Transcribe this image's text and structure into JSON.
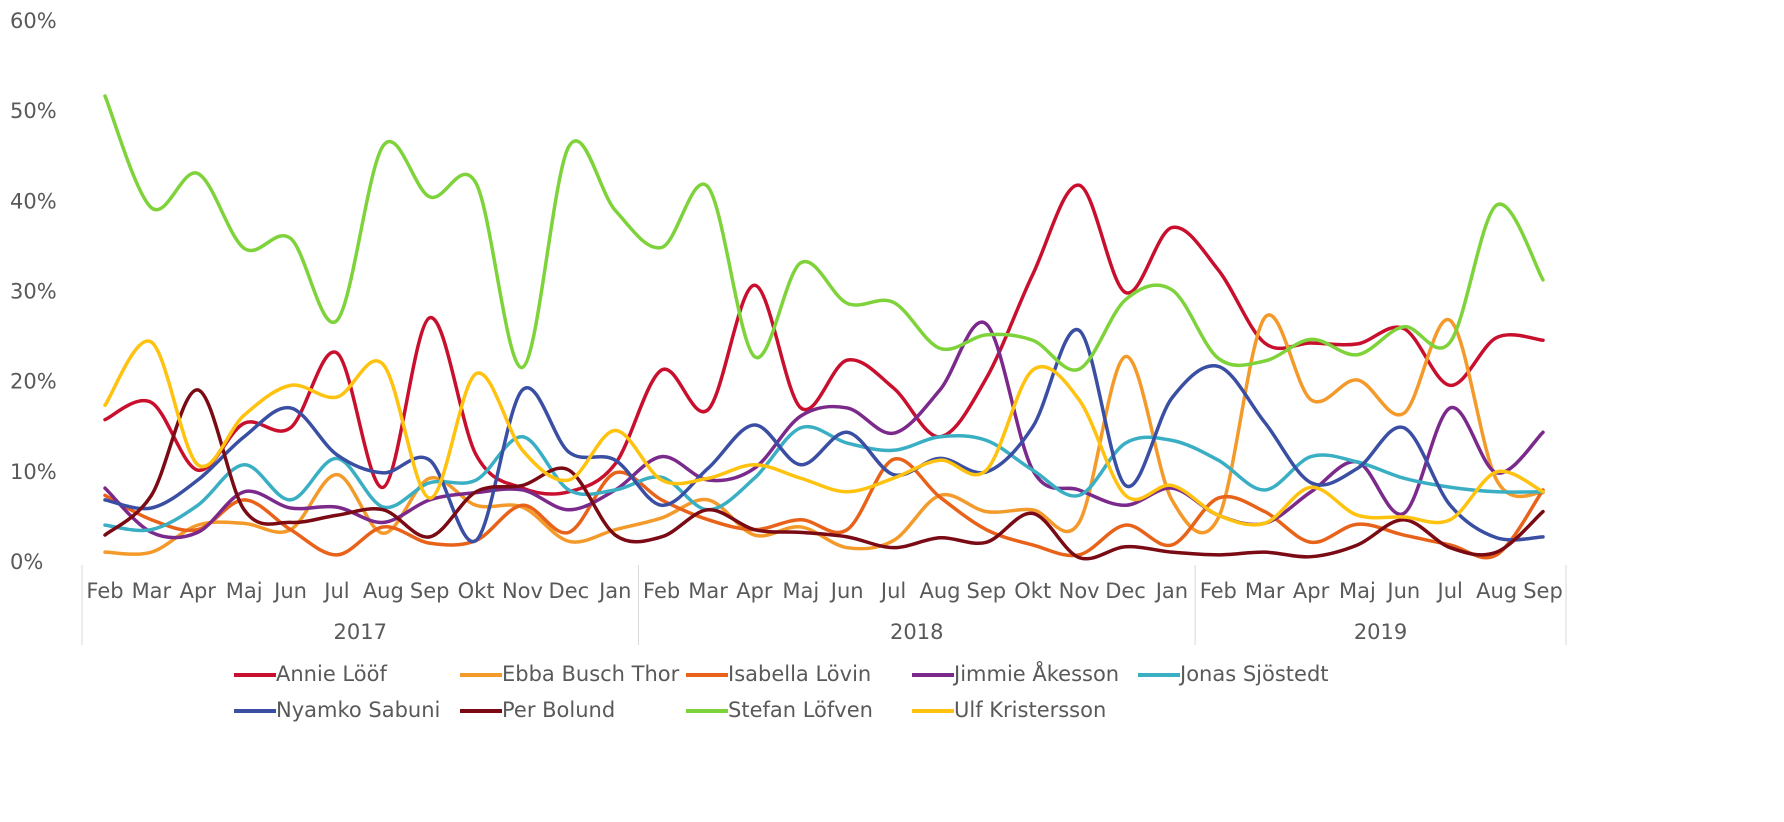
{
  "chart_data": {
    "type": "line",
    "smooth": true,
    "categories": [
      "Feb",
      "Mar",
      "Apr",
      "Maj",
      "Jun",
      "Jul",
      "Aug",
      "Sep",
      "Okt",
      "Nov",
      "Dec",
      "Jan",
      "Feb",
      "Mar",
      "Apr",
      "Maj",
      "Jun",
      "Jul",
      "Aug",
      "Sep",
      "Okt",
      "Nov",
      "Dec",
      "Jan",
      "Feb",
      "Mar",
      "Apr",
      "Maj",
      "Jun",
      "Jul",
      "Aug",
      "Sep"
    ],
    "years": [
      "2017",
      "2018",
      "2019"
    ],
    "ylim": [
      0,
      60
    ],
    "yticks": [
      {
        "value": 0,
        "label": "0%"
      },
      {
        "value": 10,
        "label": "10%"
      },
      {
        "value": 20,
        "label": "20%"
      },
      {
        "value": 30,
        "label": "30%"
      },
      {
        "value": 40,
        "label": "40%"
      },
      {
        "value": 50,
        "label": "50%"
      },
      {
        "value": 60,
        "label": "60%"
      }
    ],
    "legend": "bottom",
    "series": [
      {
        "name": "Annie Lööf",
        "color": "#c8102e",
        "values": [
          15.9,
          17.8,
          10.3,
          15.5,
          15,
          23.3,
          8.4,
          27.2,
          12,
          8.3,
          7.9,
          11,
          21.4,
          17,
          30.8,
          17.2,
          22.5,
          19.4,
          14,
          20.5,
          32,
          41.9,
          30,
          37.2,
          32.5,
          24.4,
          24.4,
          24.3,
          26,
          19.7,
          25,
          24.7
        ]
      },
      {
        "name": "Ebba Busch Thor",
        "color": "#f39a2b",
        "values": [
          1.2,
          1.2,
          4.2,
          4.4,
          3.7,
          9.8,
          3.3,
          9.4,
          6.4,
          6.2,
          2.4,
          3.7,
          5,
          7,
          3.1,
          4,
          1.7,
          2.5,
          7.5,
          5.7,
          5.9,
          4.5,
          22.9,
          7,
          5,
          27.2,
          18.1,
          20.3,
          16.6,
          26.9,
          9.2,
          7.8
        ]
      },
      {
        "name": "Isabella Lövin",
        "color": "#e8621a",
        "values": [
          7.5,
          4.8,
          3.7,
          7,
          3.7,
          0.9,
          4,
          2.2,
          2.5,
          6.4,
          3.4,
          10,
          7,
          4.8,
          3.7,
          4.8,
          3.7,
          11.5,
          7.3,
          3.7,
          2,
          0.9,
          4.2,
          2,
          7.2,
          5.7,
          2.3,
          4.3,
          3.1,
          2,
          0.9,
          8.1
        ]
      },
      {
        "name": "Jimmie Åkesson",
        "color": "#7b2a8b",
        "values": [
          8.3,
          3.4,
          3.4,
          7.9,
          6.1,
          6.2,
          4.5,
          7,
          7.8,
          8.1,
          5.9,
          8.1,
          11.8,
          9.2,
          10.5,
          16.3,
          17.2,
          14.4,
          19.2,
          26.5,
          10.3,
          8.1,
          6.4,
          8.3,
          5.3,
          4.4,
          7.9,
          11.2,
          5.5,
          17.2,
          10,
          14.5
        ]
      },
      {
        "name": "Jonas Sjöstedt",
        "color": "#3aafc4",
        "values": [
          4.2,
          3.7,
          6.4,
          10.9,
          7,
          11.6,
          6.2,
          8.9,
          9.2,
          14,
          8.1,
          8.1,
          9.5,
          5.9,
          9.4,
          15,
          13.3,
          12.5,
          14,
          13.6,
          10.3,
          7.5,
          13.3,
          13.6,
          11.4,
          8.1,
          11.8,
          11.2,
          9.4,
          8.4,
          7.9,
          7.9
        ]
      },
      {
        "name": "Nyamko Sabuni",
        "color": "#3a4fa3",
        "values": [
          7,
          6.1,
          9.2,
          14,
          17.2,
          12,
          10,
          11.4,
          2.5,
          19.2,
          12.3,
          11.4,
          6.4,
          10.5,
          15.3,
          10.9,
          14.5,
          9.8,
          11.6,
          10.1,
          15.1,
          25.8,
          8.6,
          18.3,
          21.8,
          15.6,
          8.9,
          10.5,
          15,
          6.4,
          2.8,
          2.9
        ]
      },
      {
        "name": "Per Bolund",
        "color": "#7a0a14",
        "values": [
          3.1,
          7.5,
          19.2,
          5.9,
          4.5,
          5.3,
          5.9,
          2.9,
          7.9,
          8.6,
          10.3,
          3.1,
          2.9,
          5.9,
          3.7,
          3.4,
          2.9,
          1.7,
          2.8,
          2.3,
          5.5,
          0.6,
          1.8,
          1.2,
          0.9,
          1.2,
          0.7,
          2,
          4.8,
          1.7,
          1.2,
          5.7
        ]
      },
      {
        "name": "Stefan Löfven",
        "color": "#7ed33a",
        "values": [
          51.8,
          39.4,
          43.2,
          34.9,
          36,
          26.9,
          46.3,
          40.6,
          42.1,
          21.7,
          46.2,
          39.1,
          35,
          41.7,
          22.9,
          33.3,
          28.8,
          28.9,
          23.8,
          25.3,
          24.7,
          21.5,
          29.2,
          30.3,
          22.7,
          22.4,
          24.8,
          23.1,
          26.2,
          24.5,
          39.7,
          31.4
        ]
      },
      {
        "name": "Ulf Kristersson",
        "color": "#ffc20e",
        "values": [
          17.5,
          24.5,
          10.9,
          16.4,
          19.7,
          18.4,
          22,
          7.2,
          21,
          12.5,
          9.2,
          14.7,
          9.2,
          9.4,
          10.9,
          9.4,
          7.9,
          9.4,
          11.4,
          10.3,
          21.4,
          18.1,
          7.5,
          8.6,
          5.3,
          4.4,
          8.4,
          5.3,
          5.1,
          4.8,
          10.1,
          7.9
        ]
      }
    ]
  }
}
